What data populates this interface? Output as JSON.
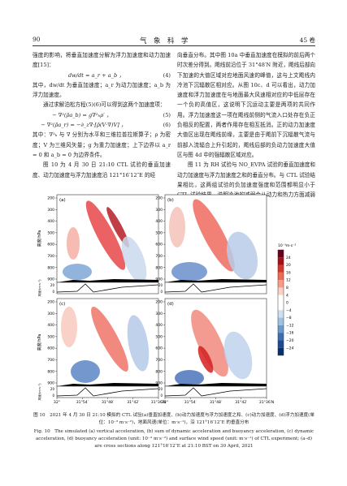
{
  "header": {
    "page": "90",
    "journal": "气　象　科　学",
    "volume": "45 卷"
  },
  "left_column": {
    "p1": "强度的影响，将垂直加速度分解为浮力加速度和动力加速度[15]：",
    "eq4": {
      "formula": "dw/dt = a_r + a_b ，",
      "number": "(4)"
    },
    "p2": "其中，dw/dt 为垂直加速度；a_r 为动力加速度；a_b 为浮力加速度。",
    "p3": "通过求解泊松方程(5)(6)可以得到这两个加速度项：",
    "eq5": {
      "formula": "− ∇²(ρ̄a_b) = g∇²ₕρ′ ，",
      "number": "(5)"
    },
    "eq6": {
      "formula": "− ∇²(ρ̄a_r) = −∂_z∇·[ρ̄(V·∇)V] ，",
      "number": "(6)"
    },
    "p4": "其中：∇²ₕ 与 ∇ 分别为水平和三维拉普拉斯算子；ρ 为密度；V 为三维风矢量；g 为重力加速度；上下边界以 a_r = 0 和 a_b = 0 为边界条件。",
    "p5": "图 10 为 4 月 30 日 21:10 CTL 试验的垂直加速度、动力加速度与浮力加速度沿 121°16′12″E 的经"
  },
  "right_column": {
    "p1": "向垂直分布。其中图 10a 中垂直加速度在模拟的前后两个时次差分得到。飑线前沿位于 31°48′N 附近，飑线后部向下加速的大值区域对应地面风速的峰值，这与上文飑线内冷池下沉辐散区相对应。从图 10c、d 可以看出，动力加速度和浮力加速度在与地面最大风速相对应的中低层存在一个负的高值区，这说明下沉运动主要是两项的共同作用。浮力加速度这一项在飑线前侧的气流入口处存在负正负相反的配置，两者作用存在相互抵消。正的动力加速度大值区出现在飑线前缘，主要是由于飑前下沉辐散气流与前部入流辐合上升引起的，飑线后部的负动力加速度大值区与图 4d 中的强辐散区域对应。",
    "p2": "图 11 为 RH 试验与 NO_EVPA 试验的垂直加速度和动力加速度与浮力加速度之和的垂直分布。与 CTL 试验结果相比，这两组试验的负加速度强度和范围都明显小于 CTL 试验结果，说明冷池的减弱会从动力和热力方面减弱下沉运动。"
  },
  "figure": {
    "panels": [
      "(a)",
      "(b)",
      "(c)",
      "(d)"
    ],
    "y_axis_label": "高度/hPa",
    "y_ticks": [
      "200",
      "300",
      "400",
      "500",
      "600",
      "700",
      "800",
      "900"
    ],
    "wind_label": "风速/(m·s⁻¹)",
    "wind_ticks": [
      "20",
      "0"
    ],
    "x_ticks": [
      "32°",
      "31°54′",
      "31°48′",
      "31°42′",
      "31°36′N"
    ],
    "colorbar_unit": "10⁻³m·s⁻²",
    "colorbar_ticks": [
      "24",
      "20",
      "16",
      "12",
      "8",
      "4",
      "0",
      "−4",
      "−8",
      "−12",
      "−16",
      "−20",
      "−24"
    ]
  },
  "caption": {
    "cn": "图 10　2021 年 4 月 30 日 21:10 模拟的 CTL 试验(a)垂直加速度、(b)动力加速度与浮力加速度之和、(c)动力加速度、(d)浮力加速度(单位：10⁻³ m·s⁻²)，地面风速(单位：m·s⁻¹)，沿 121°16′12″E 的垂直分布",
    "en": "Fig. 10　The simulated (a) vertical acceleration, (b) sum of dynamic acceleration and buoyancy acceleration, (c) dynamic acceleration, (d) buoyancy acceleration (unit: 10⁻³ m·s⁻²) and surface wind speed (unit: m·s⁻¹) of CTL experiment; (a–d) are cross sections along 121°16′12″E at 21:10 BST on 30 April, 2021"
  }
}
